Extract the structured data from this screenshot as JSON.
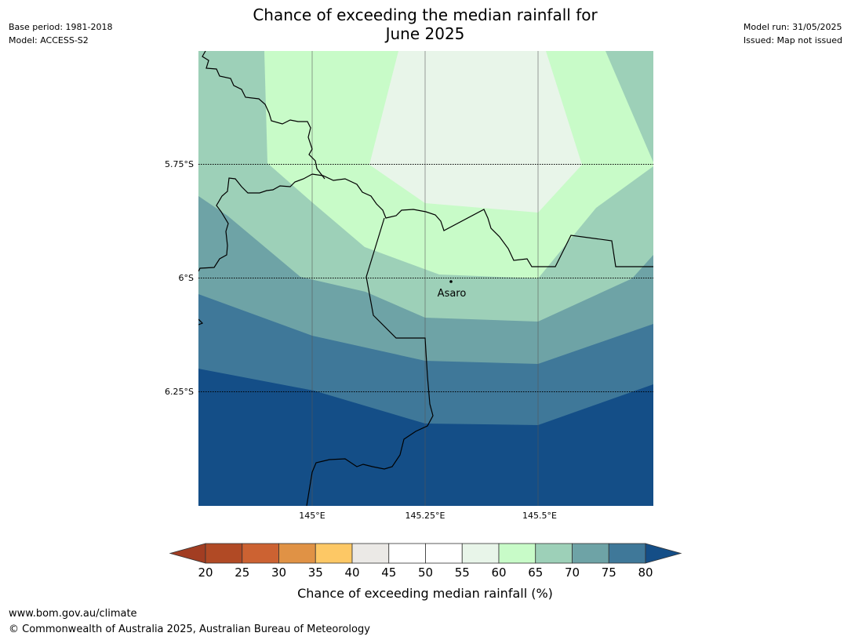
{
  "title_line1": "Chance of exceeding the median rainfall for",
  "title_line2": "June 2025",
  "meta_left": {
    "base_period": "Base period: 1981-2018",
    "model": "Model: ACCESS-S2"
  },
  "meta_right": {
    "model_run": "Model run: 31/05/2025",
    "issued": "Issued: Map not issued"
  },
  "map": {
    "lat_ticks": [
      "5.75°S",
      "6°S",
      "6.25°S"
    ],
    "lon_ticks": [
      "145°E",
      "145.25°E",
      "145.5°E"
    ],
    "place": "Asaro"
  },
  "colorbar": {
    "label": "Chance of exceeding median rainfall (%)",
    "ticks": [
      "20",
      "25",
      "30",
      "35",
      "40",
      "45",
      "50",
      "55",
      "60",
      "65",
      "70",
      "75",
      "80"
    ],
    "colors": [
      "#a23d22",
      "#b14a25",
      "#cc6232",
      "#e09245",
      "#fdc865",
      "#ebe9e6",
      "#ffffff",
      "#ffffff",
      "#e8f5e9",
      "#c8fbc8",
      "#9dd0b8",
      "#6ea3a6",
      "#3f7899",
      "#144e87"
    ]
  },
  "footer": {
    "url": "www.bom.gov.au/climate",
    "copyright": "© Commonwealth of Australia 2025, Australian Bureau of Meteorology"
  }
}
